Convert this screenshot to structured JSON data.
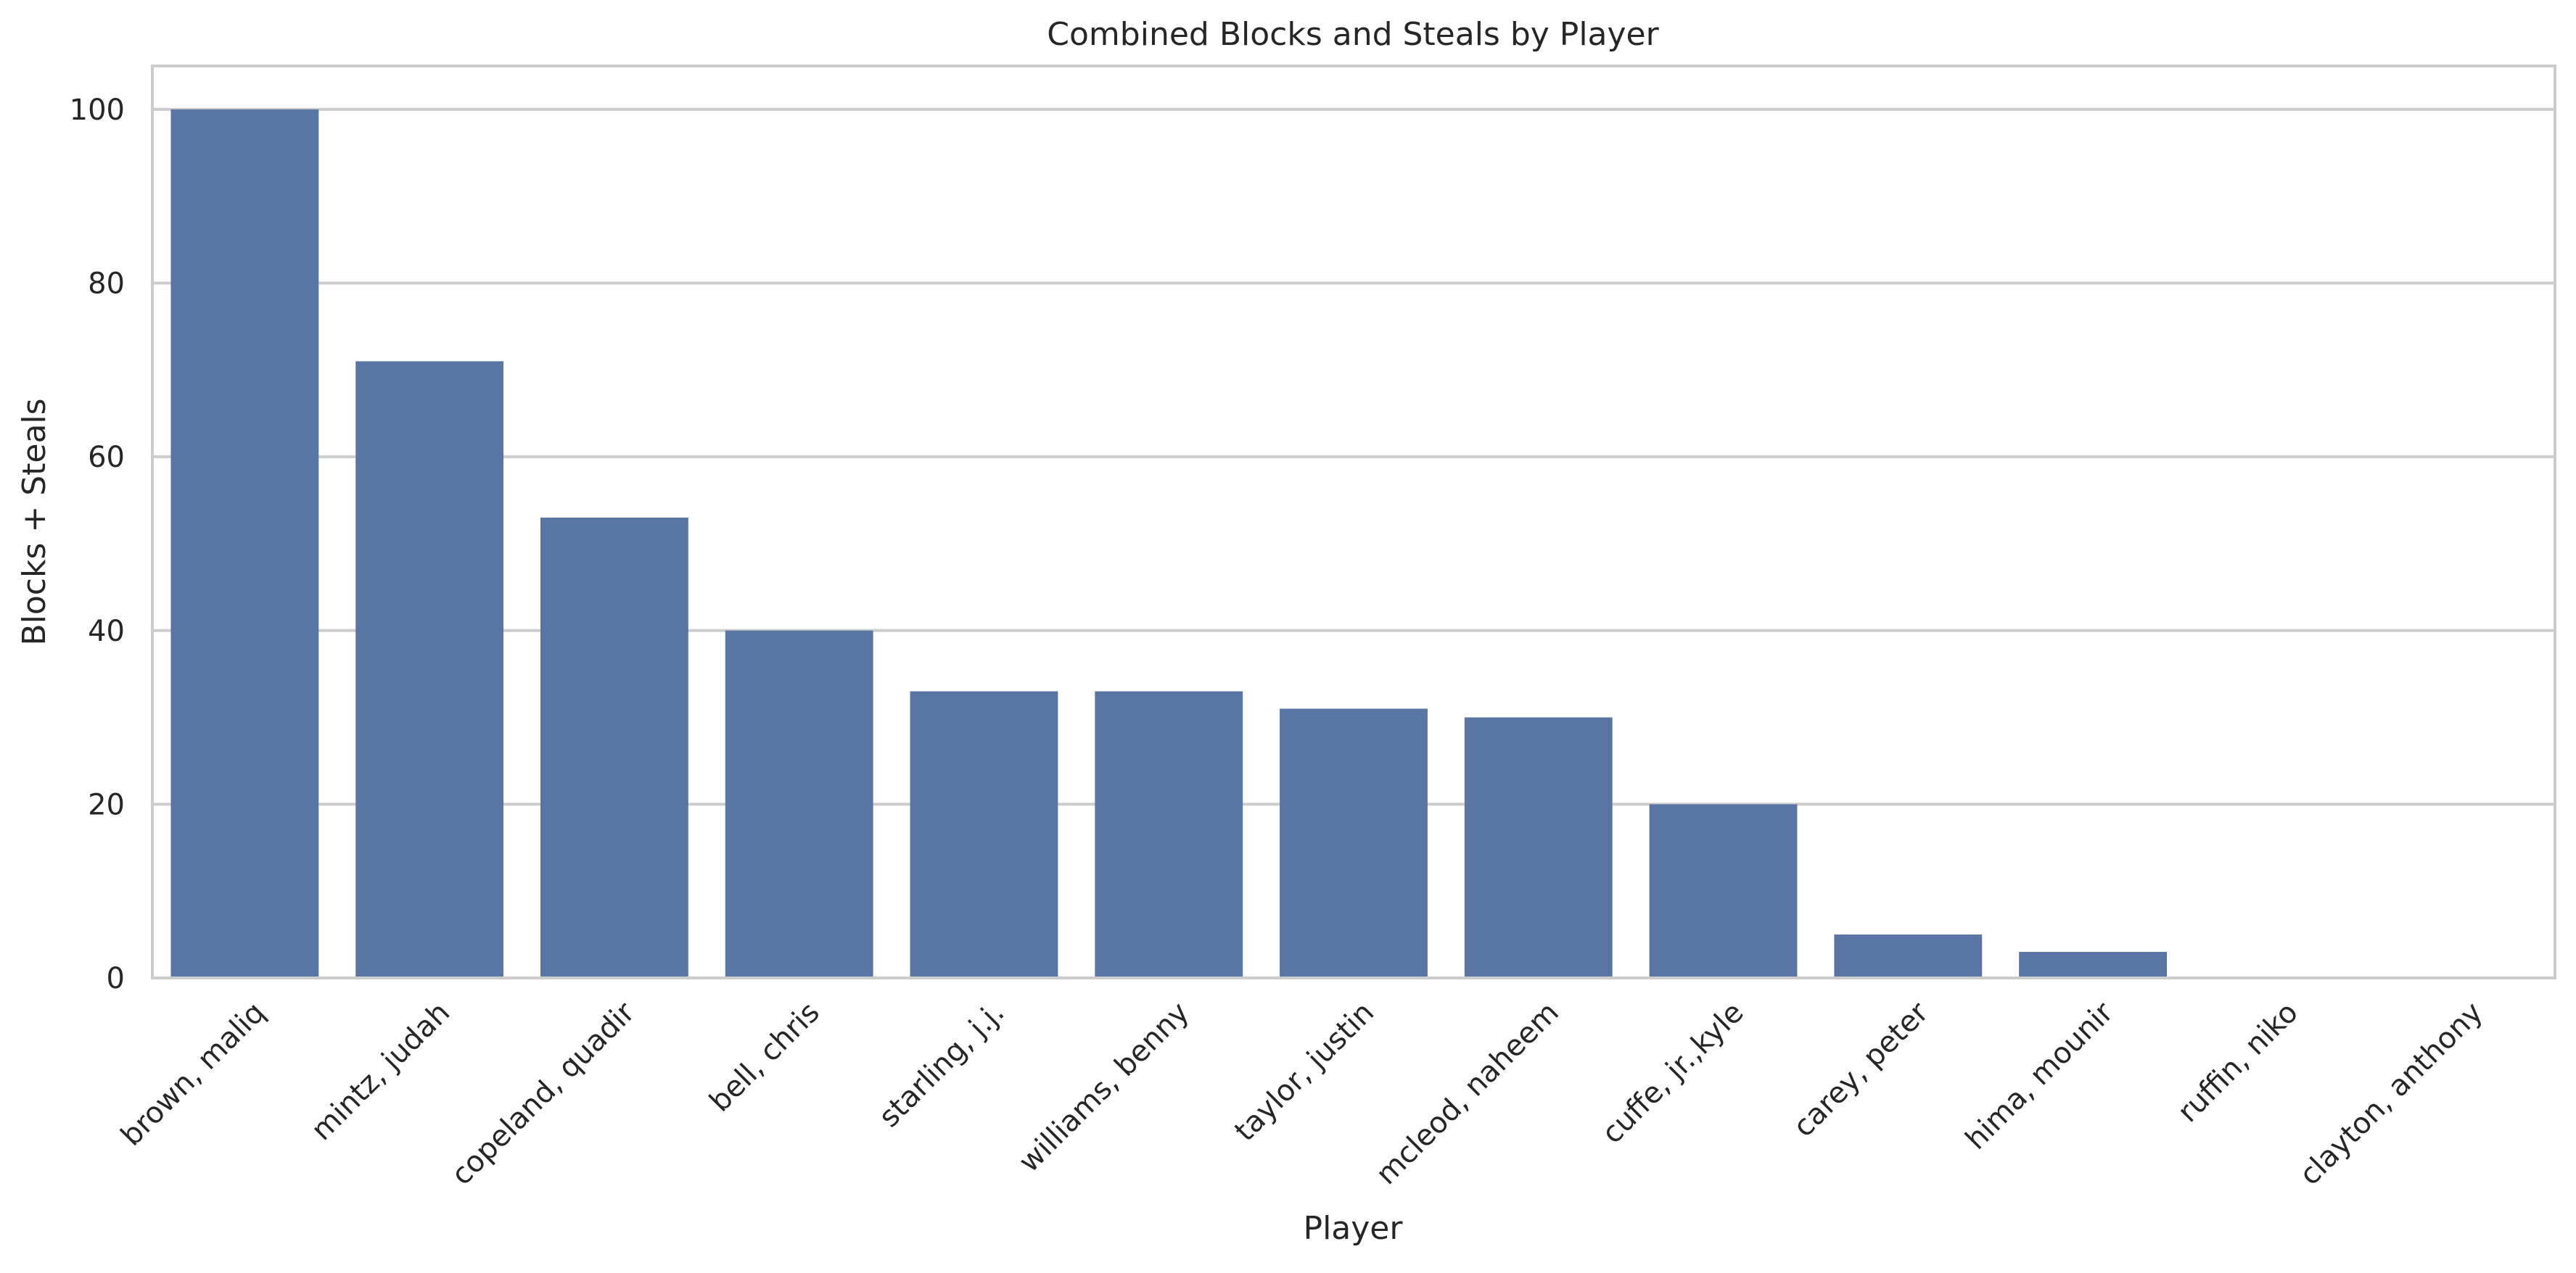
{
  "chart_data": {
    "type": "bar",
    "title": "Combined Blocks and Steals by Player",
    "xlabel": "Player",
    "ylabel": "Blocks + Steals",
    "categories": [
      "brown, maliq",
      "mintz, judah",
      "copeland, quadir",
      "bell, chris",
      "starling, j.j.",
      "williams, benny",
      "taylor, justin",
      "mcleod, naheem",
      "cuffe, jr.,kyle",
      "carey, peter",
      "hima, mounir",
      "ruffin, niko",
      "clayton, anthony"
    ],
    "values": [
      100,
      71,
      53,
      40,
      33,
      33,
      31,
      30,
      20,
      5,
      3,
      0,
      0
    ],
    "ylim": [
      0,
      105
    ],
    "yticks": [
      0,
      20,
      40,
      60,
      80,
      100
    ],
    "grid": "horizontal",
    "bar_color": "#5975a4",
    "grid_color": "#cccccc"
  }
}
